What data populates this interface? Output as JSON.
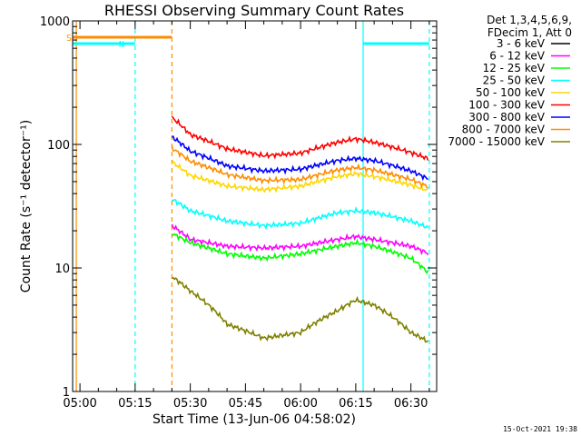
{
  "chart_data": {
    "type": "line",
    "title": "RHESSI Observing Summary Count Rates",
    "xlabel": "Start Time (13-Jun-06 04:58:02)",
    "ylabel": "Count Rate (s⁻¹ detector⁻¹)",
    "y_scale": "log",
    "ylim": [
      1,
      1000
    ],
    "xlim": [
      "04:58",
      "06:37"
    ],
    "x_ticks": [
      "05:00",
      "05:15",
      "05:30",
      "05:45",
      "06:00",
      "06:15",
      "06:30"
    ],
    "y_ticks": [
      "1",
      "10",
      "100",
      "1000"
    ],
    "legend_header": [
      "Det 1,3,4,5,6,9,",
      "FDecim 1, Att 0"
    ],
    "legend_position": "right",
    "timestamp": "15-Oct-2021 19:38",
    "series": [
      {
        "name": "3 - 6 keV",
        "color": "#000000",
        "x": [
          "05:25",
          "05:30",
          "05:40",
          "05:50",
          "06:00",
          "06:10",
          "06:15",
          "06:20",
          "06:30",
          "06:35"
        ],
        "values": [
          null,
          null,
          null,
          null,
          null,
          null,
          null,
          null,
          null,
          null
        ]
      },
      {
        "name": "6 - 12 keV",
        "color": "#ff00ff",
        "x": [
          "05:25",
          "05:30",
          "05:40",
          "05:50",
          "06:00",
          "06:10",
          "06:15",
          "06:20",
          "06:30",
          "06:35"
        ],
        "values": [
          22,
          17,
          15,
          14.5,
          15,
          17,
          18,
          17,
          15,
          13
        ]
      },
      {
        "name": "12 - 25 keV",
        "color": "#00ff00",
        "x": [
          "05:25",
          "05:30",
          "05:40",
          "05:50",
          "06:00",
          "06:10",
          "06:15",
          "06:20",
          "06:30",
          "06:35"
        ],
        "values": [
          19,
          16,
          13,
          12,
          13,
          15,
          16,
          15,
          12,
          9
        ]
      },
      {
        "name": "25 - 50 keV",
        "color": "#00ffff",
        "x": [
          "05:25",
          "05:30",
          "05:40",
          "05:50",
          "06:00",
          "06:10",
          "06:15",
          "06:20",
          "06:30",
          "06:35"
        ],
        "values": [
          36,
          29,
          24,
          22,
          23,
          28,
          29,
          28,
          24,
          21
        ]
      },
      {
        "name": "50 - 100 keV",
        "color": "#ffd700",
        "x": [
          "05:25",
          "05:30",
          "05:40",
          "05:50",
          "06:00",
          "06:10",
          "06:15",
          "06:20",
          "06:30",
          "06:35"
        ],
        "values": [
          72,
          56,
          46,
          43,
          46,
          55,
          58,
          55,
          47,
          42
        ]
      },
      {
        "name": "100 - 300 keV",
        "color": "#ff0000",
        "x": [
          "05:25",
          "05:30",
          "05:40",
          "05:50",
          "06:00",
          "06:10",
          "06:15",
          "06:20",
          "06:30",
          "06:35"
        ],
        "values": [
          165,
          120,
          92,
          81,
          85,
          104,
          111,
          104,
          86,
          76
        ]
      },
      {
        "name": "300 - 800 keV",
        "color": "#0000ff",
        "x": [
          "05:25",
          "05:30",
          "05:40",
          "05:50",
          "06:00",
          "06:10",
          "06:15",
          "06:20",
          "06:30",
          "06:35"
        ],
        "values": [
          115,
          88,
          67,
          61,
          63,
          74,
          77,
          74,
          61,
          52
        ]
      },
      {
        "name": "800 - 7000 keV",
        "color": "#ff8c00",
        "x": [
          "05:25",
          "05:30",
          "05:40",
          "05:50",
          "06:00",
          "06:10",
          "06:15",
          "06:20",
          "06:30",
          "06:35"
        ],
        "values": [
          93,
          73,
          57,
          51,
          52,
          62,
          65,
          62,
          52,
          45
        ]
      },
      {
        "name": "7000 - 15000 keV",
        "color": "#808000",
        "x": [
          "05:25",
          "05:30",
          "05:40",
          "05:50",
          "06:00",
          "06:10",
          "06:15",
          "06:20",
          "06:30",
          "06:35"
        ],
        "values": [
          8.5,
          6.5,
          3.5,
          2.7,
          3,
          4.5,
          5.5,
          5,
          3,
          2.5
        ]
      }
    ],
    "flags": [
      {
        "label": "S",
        "color": "#ff8c00",
        "from": "04:58",
        "to": "05:25"
      },
      {
        "label": "N",
        "color": "#00ffff",
        "from": "04:58",
        "to": "05:15"
      }
    ],
    "markers": [
      {
        "time": "04:58",
        "color": "#00ffff",
        "style": "solid"
      },
      {
        "time": "04:59",
        "color": "#ff8c00",
        "style": "solid"
      },
      {
        "time": "05:15",
        "color": "#00ffff",
        "style": "dashed"
      },
      {
        "time": "05:25",
        "color": "#ff8c00",
        "style": "dashed"
      },
      {
        "time": "06:17",
        "color": "#00ffff",
        "style": "solid"
      },
      {
        "time": "06:35",
        "color": "#00ffff",
        "style": "dashed"
      }
    ]
  }
}
